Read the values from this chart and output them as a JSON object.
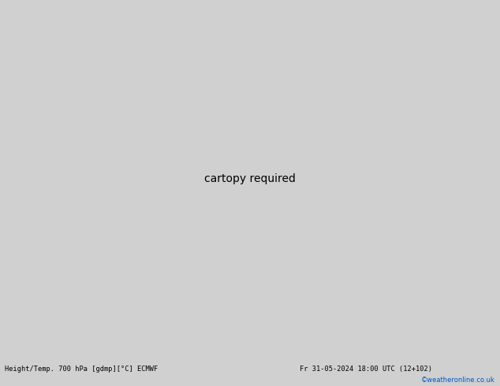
{
  "title_left": "Height/Temp. 700 hPa [gdmp][°C] ECMWF",
  "title_right": "Fr 31-05-2024 18:00 UTC (12+102)",
  "copyright": "©weatheronline.co.uk",
  "background_color": "#d0d0d0",
  "land_color": "#c8e8c0",
  "ocean_color": "#d0d0d0",
  "grid_color": "#aaaaaa",
  "black_color": "#000000",
  "pink_color": "#e000a0",
  "red_color": "#cc0000",
  "figsize": [
    6.34,
    4.9
  ],
  "dpi": 100,
  "bottom_bar_color": "#ffffff",
  "extent": [
    -82,
    -8,
    4,
    68
  ],
  "grid_lons": [
    -80,
    -70,
    -60,
    -50,
    -40,
    -30,
    -20,
    -10
  ],
  "grid_lats": [
    10,
    20,
    30,
    40,
    50,
    60
  ]
}
